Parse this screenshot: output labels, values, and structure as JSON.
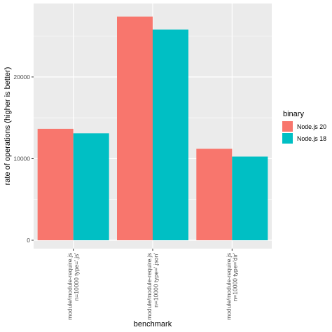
{
  "chart_data": {
    "type": "bar",
    "title": "",
    "xlabel": "benchmark",
    "ylabel": "rate of operations (higher is better)",
    "categories": [
      [
        "module/module-require.js",
        "n=10000 type='.js'"
      ],
      [
        "module/module-require.js",
        "n=10000 type='.json'"
      ],
      [
        "module/module-require.js",
        "n=10000 type='dir'"
      ]
    ],
    "series": [
      {
        "name": "Node.js 20",
        "color": "#F8766D",
        "values": [
          13650,
          27400,
          11200
        ]
      },
      {
        "name": "Node.js 18",
        "color": "#00BFC4",
        "values": [
          13100,
          25800,
          10250
        ]
      }
    ],
    "ylim": [
      0,
      29000
    ],
    "yticks": [
      0,
      10000,
      20000
    ],
    "legend": {
      "title": "binary",
      "position": "right"
    },
    "grid": true,
    "panel_color": "#EBEBEB"
  }
}
